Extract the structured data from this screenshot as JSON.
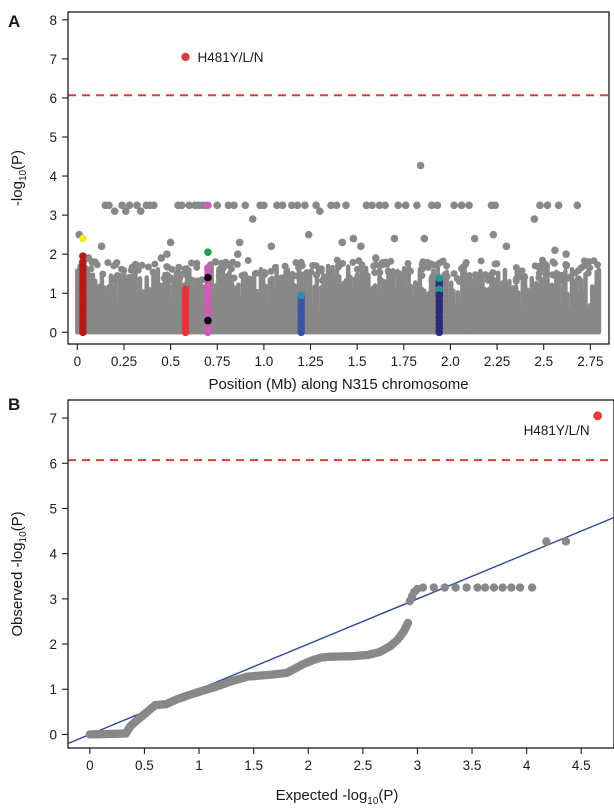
{
  "chart_data": [
    {
      "panel": "A",
      "type": "scatter",
      "title": "",
      "xlabel": "Position (Mb) along N315 chromosome",
      "ylabel_parts": [
        "-log",
        "10",
        "(P)"
      ],
      "xlim": [
        -0.05,
        2.85
      ],
      "ylim": [
        -0.3,
        8.2
      ],
      "xticks": [
        0,
        0.25,
        0.5,
        0.75,
        1.0,
        1.25,
        1.5,
        1.75,
        2.0,
        2.25,
        2.5,
        2.75
      ],
      "xtick_labels": [
        "0",
        "0.25",
        "0.5",
        "0.75",
        "1.0",
        "1.25",
        "1.5",
        "1.75",
        "2.0",
        "2.25",
        "2.5",
        "2.75"
      ],
      "yticks": [
        0,
        1,
        2,
        3,
        4,
        5,
        6,
        7,
        8
      ],
      "ytick_labels": [
        "0",
        "1",
        "2",
        "3",
        "4",
        "5",
        "6",
        "7",
        "8"
      ],
      "threshold": 6.07,
      "grid": false,
      "background_colour": "#888888",
      "highlight": {
        "x": 0.58,
        "y": 7.05,
        "color": "#e03c3c",
        "label": "H481Y/L/N"
      },
      "gray_points": [
        [
          0.01,
          2.5
        ],
        [
          0.06,
          1.9
        ],
        [
          0.08,
          1.8
        ],
        [
          0.13,
          2.2
        ],
        [
          0.15,
          3.25
        ],
        [
          0.17,
          3.25
        ],
        [
          0.2,
          3.1
        ],
        [
          0.24,
          3.25
        ],
        [
          0.26,
          3.1
        ],
        [
          0.28,
          3.25
        ],
        [
          0.32,
          3.25
        ],
        [
          0.34,
          3.1
        ],
        [
          0.37,
          3.25
        ],
        [
          0.39,
          3.25
        ],
        [
          0.41,
          3.25
        ],
        [
          0.45,
          1.9
        ],
        [
          0.48,
          2.0
        ],
        [
          0.5,
          2.3
        ],
        [
          0.54,
          3.25
        ],
        [
          0.56,
          3.25
        ],
        [
          0.6,
          3.25
        ],
        [
          0.63,
          3.25
        ],
        [
          0.65,
          3.25
        ],
        [
          0.67,
          3.25
        ],
        [
          0.69,
          3.25
        ],
        [
          0.75,
          3.25
        ],
        [
          0.81,
          3.25
        ],
        [
          0.84,
          3.25
        ],
        [
          0.87,
          2.3
        ],
        [
          0.9,
          3.25
        ],
        [
          0.94,
          2.9
        ],
        [
          0.98,
          3.25
        ],
        [
          1.0,
          3.25
        ],
        [
          1.07,
          3.25
        ],
        [
          1.1,
          3.25
        ],
        [
          1.15,
          3.25
        ],
        [
          1.18,
          3.25
        ],
        [
          1.22,
          3.25
        ],
        [
          1.24,
          2.5
        ],
        [
          1.28,
          3.25
        ],
        [
          1.3,
          3.1
        ],
        [
          1.36,
          3.25
        ],
        [
          1.39,
          3.25
        ],
        [
          1.42,
          2.3
        ],
        [
          1.44,
          3.25
        ],
        [
          1.48,
          2.4
        ],
        [
          1.52,
          2.2
        ],
        [
          1.55,
          3.25
        ],
        [
          1.58,
          3.25
        ],
        [
          1.62,
          3.25
        ],
        [
          1.65,
          3.25
        ],
        [
          1.7,
          2.4
        ],
        [
          1.72,
          3.25
        ],
        [
          1.76,
          3.25
        ],
        [
          1.82,
          3.25
        ],
        [
          1.84,
          4.27
        ],
        [
          1.86,
          2.4
        ],
        [
          1.9,
          3.25
        ],
        [
          1.93,
          3.25
        ],
        [
          2.02,
          3.25
        ],
        [
          2.06,
          3.25
        ],
        [
          2.1,
          3.25
        ],
        [
          2.13,
          2.4
        ],
        [
          2.22,
          3.25
        ],
        [
          2.24,
          3.25
        ],
        [
          2.23,
          2.5
        ],
        [
          2.45,
          2.9
        ],
        [
          2.48,
          3.25
        ],
        [
          2.52,
          3.25
        ],
        [
          2.58,
          3.25
        ],
        [
          2.68,
          3.25
        ],
        [
          2.3,
          2.2
        ],
        [
          2.56,
          2.1
        ],
        [
          2.62,
          2.0
        ],
        [
          1.04,
          2.2
        ],
        [
          0.86,
          2.0
        ],
        [
          0.74,
          1.8
        ],
        [
          1.6,
          1.9
        ],
        [
          2.74,
          1.8
        ]
      ],
      "colored_strips": [
        {
          "x": 0.03,
          "color": "#b31b1b",
          "top": 1.85
        },
        {
          "x": 0.58,
          "color": "#e8323a",
          "top": 1.1
        },
        {
          "x": 0.7,
          "color": "#cc5fb5",
          "top": 1.7
        },
        {
          "x": 1.2,
          "color": "#3b53a5",
          "top": 0.95
        },
        {
          "x": 1.94,
          "color": "#2e2a78",
          "top": 1.4
        }
      ],
      "colored_points": [
        {
          "x": 0.03,
          "y": 2.4,
          "color": "#f2e92a"
        },
        {
          "x": 0.03,
          "y": 1.95,
          "color": "#b31b1b"
        },
        {
          "x": 0.03,
          "y": 1.8,
          "color": "#b31b1b"
        },
        {
          "x": 0.58,
          "y": 1.05,
          "color": "#e8323a"
        },
        {
          "x": 0.7,
          "y": 3.25,
          "color": "#cc5fb5"
        },
        {
          "x": 0.7,
          "y": 2.05,
          "color": "#1f9c4e"
        },
        {
          "x": 0.7,
          "y": 1.65,
          "color": "#cc5fb5"
        },
        {
          "x": 0.7,
          "y": 1.4,
          "color": "#000000"
        },
        {
          "x": 0.7,
          "y": 1.1,
          "color": "#cc5fb5"
        },
        {
          "x": 0.7,
          "y": 0.85,
          "color": "#cc5fb5"
        },
        {
          "x": 0.7,
          "y": 0.6,
          "color": "#cc5fb5"
        },
        {
          "x": 0.7,
          "y": 0.3,
          "color": "#000000"
        },
        {
          "x": 1.2,
          "y": 0.95,
          "color": "#2e8fb0"
        },
        {
          "x": 1.94,
          "y": 1.38,
          "color": "#21978f"
        },
        {
          "x": 1.94,
          "y": 1.1,
          "color": "#21978f"
        },
        {
          "x": 1.94,
          "y": 0.95,
          "color": "#2e2a78"
        }
      ]
    },
    {
      "panel": "B",
      "type": "scatter",
      "title": "",
      "xlabel_parts": [
        "Expected -log",
        "10",
        "(P)"
      ],
      "ylabel_parts": [
        "Observed -log",
        "10",
        "(P)"
      ],
      "xlim": [
        -0.2,
        4.8
      ],
      "ylim": [
        -0.3,
        7.4
      ],
      "xticks": [
        0,
        0.5,
        1,
        1.5,
        2,
        2.5,
        3,
        3.5,
        4,
        4.5
      ],
      "xtick_labels": [
        "0",
        "0.5",
        "1",
        "1.5",
        "2",
        "2.5",
        "3",
        "3.5",
        "4",
        "4.5"
      ],
      "yticks": [
        0,
        1,
        2,
        3,
        4,
        5,
        6,
        7
      ],
      "ytick_labels": [
        "0",
        "1",
        "2",
        "3",
        "4",
        "5",
        "6",
        "7"
      ],
      "threshold": 6.07,
      "grid": false,
      "reference_line": {
        "x": [
          -0.2,
          4.8
        ],
        "y": [
          -0.2,
          4.8
        ],
        "color": "#2b4a9b"
      },
      "highlight": {
        "x": 4.65,
        "y": 7.05,
        "color": "#e03c3c",
        "label": "H481Y/L/N"
      },
      "qq_segments": [
        [
          0.0,
          0.0
        ],
        [
          0.33,
          0.02
        ],
        [
          0.37,
          0.18
        ],
        [
          0.45,
          0.35
        ],
        [
          0.55,
          0.55
        ],
        [
          0.6,
          0.65
        ],
        [
          0.7,
          0.67
        ],
        [
          0.8,
          0.78
        ],
        [
          0.92,
          0.88
        ],
        [
          1.05,
          0.98
        ],
        [
          1.15,
          1.05
        ],
        [
          1.3,
          1.18
        ],
        [
          1.45,
          1.28
        ],
        [
          1.55,
          1.3
        ],
        [
          1.65,
          1.32
        ],
        [
          1.8,
          1.36
        ],
        [
          1.85,
          1.42
        ],
        [
          1.95,
          1.55
        ],
        [
          2.05,
          1.65
        ],
        [
          2.12,
          1.7
        ],
        [
          2.2,
          1.72
        ],
        [
          2.4,
          1.73
        ],
        [
          2.55,
          1.76
        ],
        [
          2.65,
          1.82
        ],
        [
          2.75,
          1.95
        ],
        [
          2.82,
          2.1
        ],
        [
          2.88,
          2.3
        ],
        [
          2.92,
          2.5
        ]
      ],
      "qq_points": [
        [
          2.93,
          2.95
        ],
        [
          2.95,
          3.05
        ],
        [
          2.97,
          3.15
        ],
        [
          3.0,
          3.22
        ],
        [
          3.05,
          3.25
        ],
        [
          3.15,
          3.25
        ],
        [
          3.25,
          3.25
        ],
        [
          3.35,
          3.25
        ],
        [
          3.45,
          3.25
        ],
        [
          3.55,
          3.25
        ],
        [
          3.62,
          3.25
        ],
        [
          3.7,
          3.25
        ],
        [
          3.78,
          3.25
        ],
        [
          3.86,
          3.25
        ],
        [
          3.94,
          3.25
        ],
        [
          4.05,
          3.25
        ],
        [
          4.18,
          4.27
        ],
        [
          4.36,
          4.27
        ]
      ],
      "point_colour": "#888888"
    }
  ],
  "panel_letters": {
    "a": "A",
    "b": "B"
  }
}
